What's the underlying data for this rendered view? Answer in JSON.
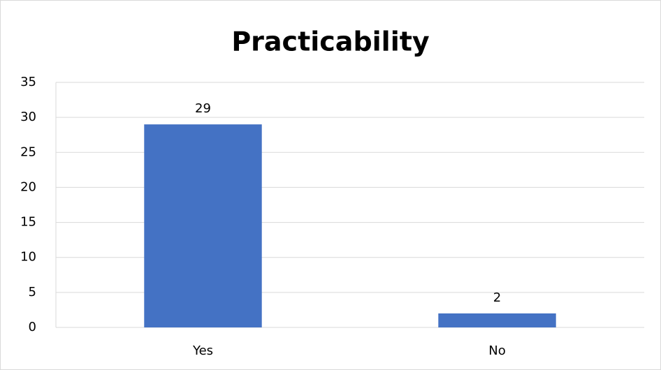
{
  "chart_data": {
    "type": "bar",
    "title": "Practicability",
    "categories": [
      "Yes",
      "No"
    ],
    "values": [
      29,
      2
    ],
    "color": "#4472c4",
    "ylim": [
      0,
      35
    ],
    "yticks": [
      0,
      5,
      10,
      15,
      20,
      25,
      30,
      35
    ],
    "grid": true,
    "data_labels": true
  }
}
